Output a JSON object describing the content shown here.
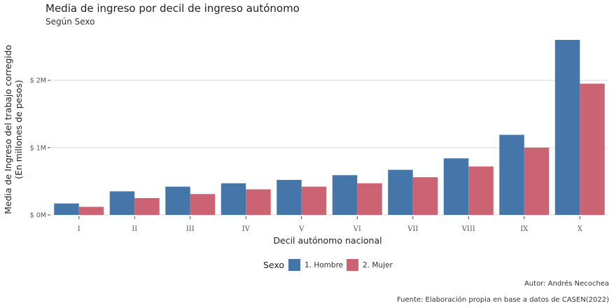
{
  "chart_data": {
    "type": "bar",
    "title": "Media de ingreso por decil de ingreso autónomo",
    "subtitle": "Según Sexo",
    "xlabel": "Decil autónomo nacional",
    "ylabel_lines": [
      "Media de Ingreso del trabajo corregido",
      "(En millones de pesos)"
    ],
    "categories": [
      "I",
      "II",
      "III",
      "IV",
      "V",
      "VI",
      "VII",
      "VIII",
      "IX",
      "X"
    ],
    "series": [
      {
        "name": "1. Hombre",
        "color": "#4576aa",
        "values": [
          0.17,
          0.35,
          0.42,
          0.47,
          0.52,
          0.59,
          0.67,
          0.84,
          1.19,
          2.6
        ]
      },
      {
        "name": "2. Mujer",
        "color": "#cc6373",
        "values": [
          0.12,
          0.25,
          0.31,
          0.38,
          0.42,
          0.47,
          0.56,
          0.72,
          1.0,
          1.95
        ]
      }
    ],
    "ylim": [
      0,
      2.6
    ],
    "yticks": [
      0,
      1,
      2
    ],
    "ytick_labels": [
      "$ 0M",
      "$ 1M",
      "$ 2M"
    ],
    "grid": true,
    "legend_title": "Sexo",
    "legend_position": "bottom",
    "captions": [
      "Autor: Andrés Necochea",
      "Fuente: Elaboración propia en base a datos de CASEN(2022)"
    ]
  }
}
